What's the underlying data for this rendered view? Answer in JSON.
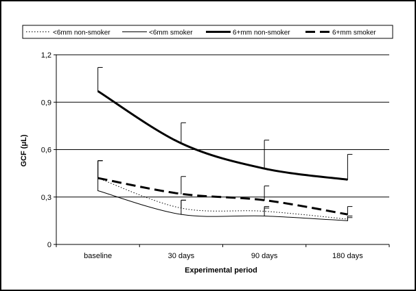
{
  "chart_data": {
    "type": "line",
    "title": "",
    "xlabel": "Experimental period",
    "ylabel": "GCF (μL)",
    "categories": [
      "baseline",
      "30 days",
      "90 days",
      "180 days"
    ],
    "ylim": [
      0,
      1.2
    ],
    "yticks": [
      "0",
      "0,3",
      "0,6",
      "0,9",
      "1,2"
    ],
    "ytick_values": [
      0,
      0.3,
      0.6,
      0.9,
      1.2
    ],
    "grid": "horizontal",
    "legend_position": "top",
    "series": [
      {
        "name": "<6mm non-smoker",
        "values": [
          0.42,
          0.23,
          0.21,
          0.16
        ],
        "error": [
          0.11,
          0.05,
          0.03,
          0.02
        ],
        "style": "dotted",
        "width": 1,
        "color": "#000000"
      },
      {
        "name": "<6mm smoker",
        "values": [
          0.34,
          0.19,
          0.18,
          0.15
        ],
        "error": [
          0.19,
          0.09,
          0.05,
          0.02
        ],
        "style": "solid",
        "width": 1,
        "color": "#000000"
      },
      {
        "name": "6+mm non-smoker",
        "values": [
          0.97,
          0.64,
          0.48,
          0.41
        ],
        "error": [
          0.15,
          0.13,
          0.18,
          0.16
        ],
        "style": "solid",
        "width": 3,
        "color": "#000000"
      },
      {
        "name": "6+mm smoker",
        "values": [
          0.42,
          0.32,
          0.28,
          0.19
        ],
        "error": [
          0.11,
          0.11,
          0.09,
          0.05
        ],
        "style": "dashed",
        "width": 3,
        "color": "#000000"
      }
    ]
  }
}
